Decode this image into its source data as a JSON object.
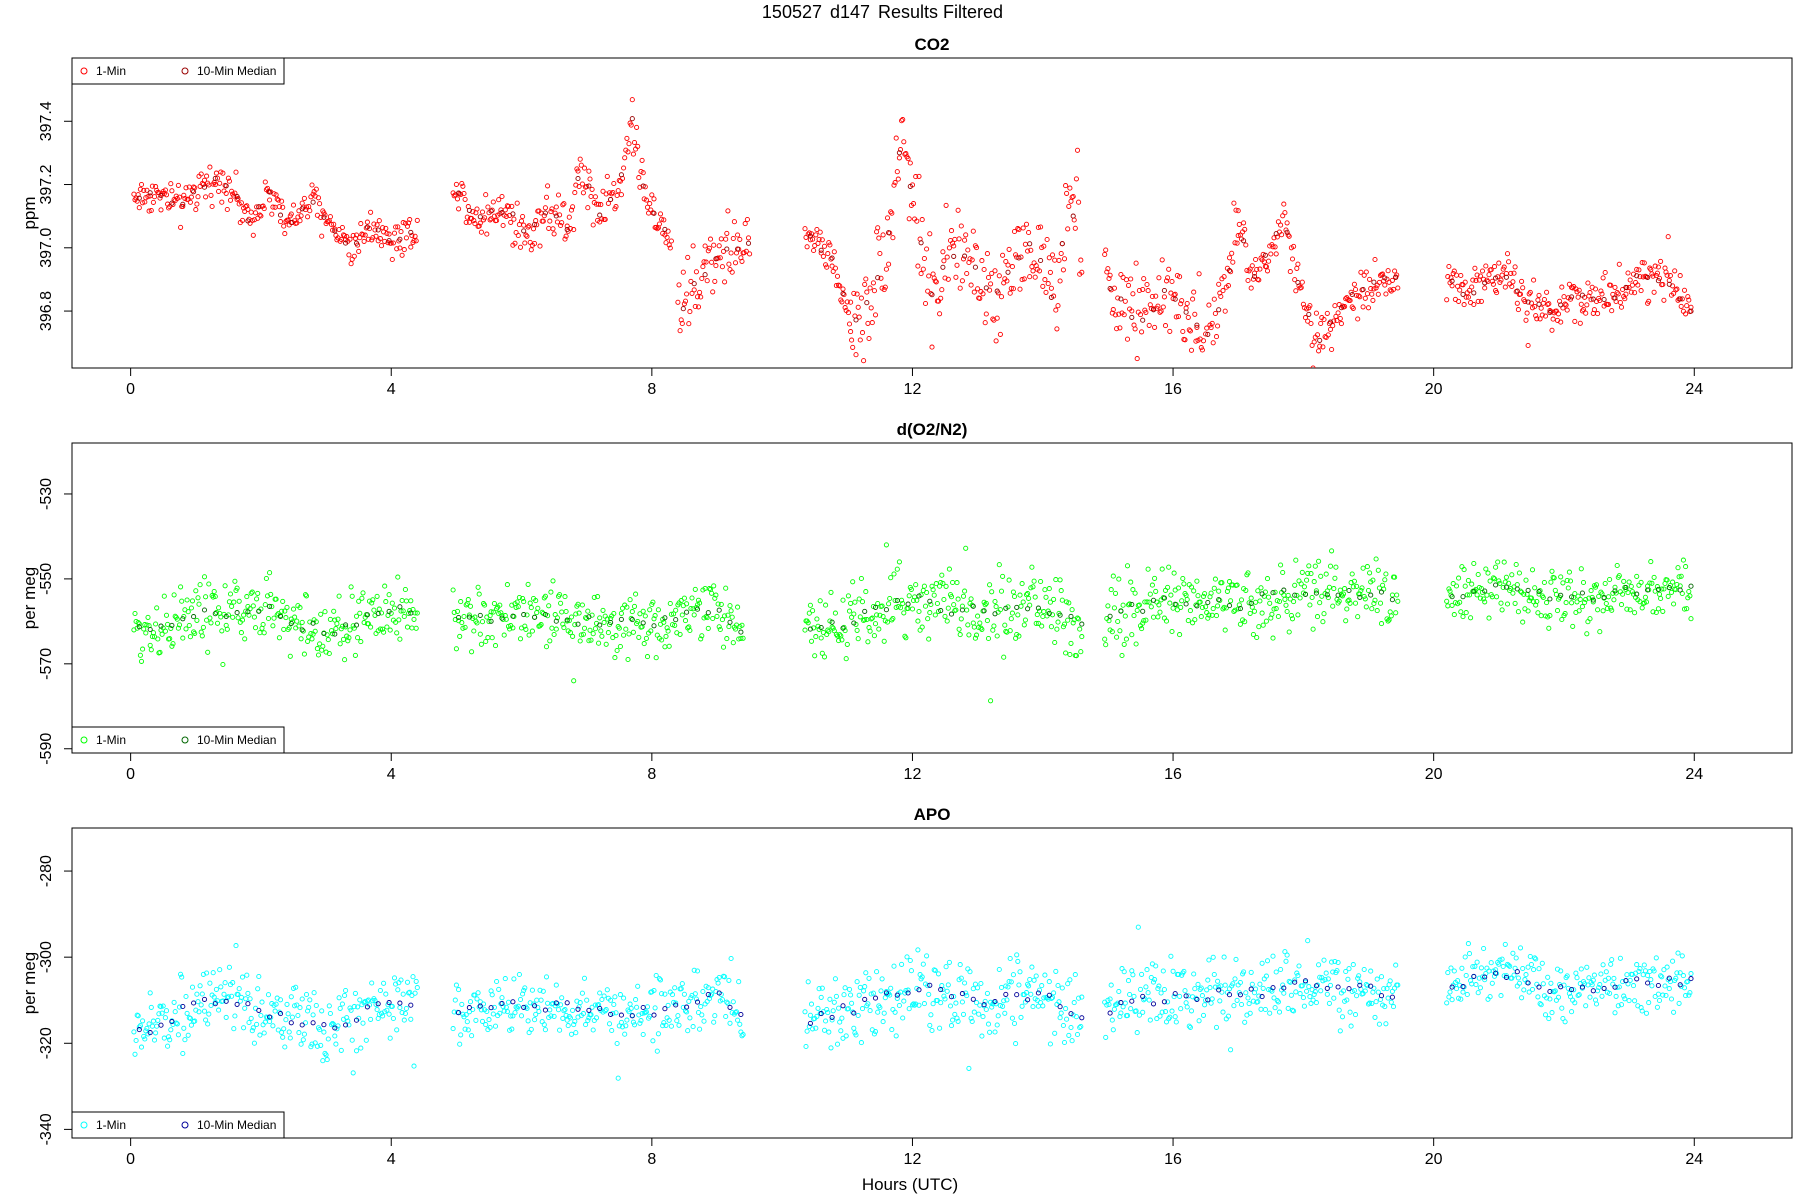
{
  "figure": {
    "title_parts": [
      "150527",
      "d147",
      "Results Filtered"
    ],
    "x_label": "Hours (UTC)"
  },
  "chart_data": [
    {
      "type": "scatter",
      "title": "CO2",
      "xlabel": "Hours (UTC)",
      "ylabel": "ppm",
      "xlim": [
        -0.9,
        25.5
      ],
      "ylim": [
        396.62,
        397.6
      ],
      "x_ticks": [
        0,
        4,
        8,
        12,
        16,
        20,
        24
      ],
      "y_ticks": [
        396.8,
        397.0,
        397.2,
        397.4
      ],
      "y_tick_labels": [
        "396.8",
        "397.0",
        "397.2",
        "397.4"
      ],
      "grid": false,
      "legend_position": "top-left",
      "series": [
        {
          "name": "1-Min",
          "color": "#ff0000",
          "marker": "open-circle"
        },
        {
          "name": "10-Min Median",
          "color": "#990000",
          "marker": "open-circle"
        }
      ],
      "segments": [
        {
          "start": 0.05,
          "end": 4.4,
          "knots": [
            [
              0.05,
              397.16
            ],
            [
              0.4,
              397.17
            ],
            [
              0.8,
              397.13
            ],
            [
              1.0,
              397.18
            ],
            [
              1.4,
              397.22
            ],
            [
              1.6,
              397.17
            ],
            [
              1.8,
              397.08
            ],
            [
              2.1,
              397.18
            ],
            [
              2.4,
              397.07
            ],
            [
              2.8,
              397.15
            ],
            [
              3.1,
              397.07
            ],
            [
              3.4,
              397.0
            ],
            [
              3.7,
              397.08
            ],
            [
              4.0,
              397.02
            ],
            [
              4.4,
              397.06
            ]
          ],
          "noise": 0.04
        },
        {
          "start": 4.95,
          "end": 8.3,
          "knots": [
            [
              4.95,
              397.2
            ],
            [
              5.3,
              397.1
            ],
            [
              5.8,
              397.12
            ],
            [
              6.1,
              397.03
            ],
            [
              6.4,
              397.13
            ],
            [
              6.7,
              397.05
            ],
            [
              6.9,
              397.25
            ],
            [
              7.2,
              397.1
            ],
            [
              7.5,
              397.2
            ],
            [
              7.7,
              397.4
            ],
            [
              7.9,
              397.15
            ],
            [
              8.3,
              397.02
            ]
          ],
          "noise": 0.05
        },
        {
          "start": 8.4,
          "end": 9.5,
          "knots": [
            [
              8.4,
              396.8
            ],
            [
              8.8,
              396.92
            ],
            [
              9.1,
              397.0
            ],
            [
              9.5,
              397.0
            ]
          ],
          "noise": 0.08
        },
        {
          "start": 10.35,
          "end": 11.05,
          "knots": [
            [
              10.35,
              397.05
            ],
            [
              10.6,
              397.0
            ],
            [
              10.8,
              396.95
            ],
            [
              11.05,
              396.77
            ]
          ],
          "noise": 0.04
        },
        {
          "start": 11.05,
          "end": 14.6,
          "knots": [
            [
              11.05,
              396.75
            ],
            [
              11.3,
              396.82
            ],
            [
              11.6,
              397.0
            ],
            [
              11.85,
              397.4
            ],
            [
              12.0,
              397.15
            ],
            [
              12.3,
              396.85
            ],
            [
              12.6,
              397.0
            ],
            [
              12.9,
              396.95
            ],
            [
              13.2,
              396.85
            ],
            [
              13.5,
              396.95
            ],
            [
              13.9,
              397.0
            ],
            [
              14.2,
              396.8
            ],
            [
              14.4,
              397.2
            ],
            [
              14.6,
              396.95
            ]
          ],
          "noise": 0.1
        },
        {
          "start": 14.95,
          "end": 17.0,
          "knots": [
            [
              14.95,
              396.9
            ],
            [
              15.3,
              396.8
            ],
            [
              15.6,
              396.78
            ],
            [
              15.9,
              396.88
            ],
            [
              16.2,
              396.78
            ],
            [
              16.5,
              396.7
            ],
            [
              16.8,
              396.85
            ],
            [
              17.0,
              397.1
            ]
          ],
          "noise": 0.08
        },
        {
          "start": 17.0,
          "end": 19.45,
          "knots": [
            [
              17.0,
              397.1
            ],
            [
              17.2,
              396.9
            ],
            [
              17.5,
              397.0
            ],
            [
              17.7,
              397.1
            ],
            [
              17.9,
              396.9
            ],
            [
              18.2,
              396.7
            ],
            [
              18.5,
              396.8
            ],
            [
              18.8,
              396.85
            ],
            [
              19.1,
              396.9
            ],
            [
              19.45,
              396.9
            ]
          ],
          "noise": 0.05
        },
        {
          "start": 20.2,
          "end": 23.95,
          "knots": [
            [
              20.2,
              396.9
            ],
            [
              20.5,
              396.85
            ],
            [
              20.8,
              396.9
            ],
            [
              21.1,
              396.92
            ],
            [
              21.4,
              396.83
            ],
            [
              21.8,
              396.8
            ],
            [
              22.1,
              396.85
            ],
            [
              22.5,
              396.84
            ],
            [
              22.8,
              396.85
            ],
            [
              23.2,
              396.92
            ],
            [
              23.6,
              396.9
            ],
            [
              23.95,
              396.8
            ]
          ],
          "noise": 0.05
        }
      ]
    },
    {
      "type": "scatter",
      "title": "d(O2/N2)",
      "xlabel": "Hours (UTC)",
      "ylabel": "per meg",
      "xlim": [
        -0.9,
        25.5
      ],
      "ylim": [
        -591,
        -518
      ],
      "x_ticks": [
        0,
        4,
        8,
        12,
        16,
        20,
        24
      ],
      "y_ticks": [
        -590,
        -570,
        -550,
        -530
      ],
      "y_tick_labels": [
        "-590",
        "-570",
        "-550",
        "-530"
      ],
      "grid": false,
      "legend_position": "bottom-left",
      "series": [
        {
          "name": "1-Min",
          "color": "#00ff00",
          "marker": "open-circle"
        },
        {
          "name": "10-Min Median",
          "color": "#006600",
          "marker": "open-circle"
        }
      ],
      "segments": [
        {
          "start": 0.05,
          "end": 4.4,
          "knots": [
            [
              0.05,
              -563
            ],
            [
              1.0,
              -558
            ],
            [
              2.0,
              -557
            ],
            [
              3.0,
              -563
            ],
            [
              4.0,
              -557
            ],
            [
              4.4,
              -558
            ]
          ],
          "noise": 5.5
        },
        {
          "start": 4.95,
          "end": 9.4,
          "knots": [
            [
              4.95,
              -560
            ],
            [
              6.0,
              -558
            ],
            [
              7.0,
              -560
            ],
            [
              8.0,
              -561
            ],
            [
              9.0,
              -557
            ],
            [
              9.4,
              -562
            ]
          ],
          "noise": 5
        },
        {
          "start": 10.35,
          "end": 14.6,
          "knots": [
            [
              10.35,
              -562
            ],
            [
              11.0,
              -560
            ],
            [
              12.0,
              -555
            ],
            [
              13.0,
              -558
            ],
            [
              14.0,
              -556
            ],
            [
              14.6,
              -562
            ]
          ],
          "noise": 6
        },
        {
          "start": 14.95,
          "end": 19.45,
          "knots": [
            [
              14.95,
              -558
            ],
            [
              16.0,
              -555
            ],
            [
              17.0,
              -556
            ],
            [
              18.0,
              -553
            ],
            [
              19.0,
              -554
            ],
            [
              19.45,
              -555
            ]
          ],
          "noise": 5.5
        },
        {
          "start": 20.2,
          "end": 23.95,
          "knots": [
            [
              20.2,
              -555
            ],
            [
              21.0,
              -552
            ],
            [
              22.0,
              -555
            ],
            [
              23.0,
              -553
            ],
            [
              23.95,
              -552
            ]
          ],
          "noise": 4.5
        }
      ]
    },
    {
      "type": "scatter",
      "title": "APO",
      "xlabel": "Hours (UTC)",
      "ylabel": "per meg",
      "xlim": [
        -0.9,
        25.5
      ],
      "ylim": [
        -342,
        -270
      ],
      "x_ticks": [
        0,
        4,
        8,
        12,
        16,
        20,
        24
      ],
      "y_ticks": [
        -340,
        -320,
        -300,
        -280
      ],
      "y_tick_labels": [
        "-340",
        "-320",
        "-300",
        "-280"
      ],
      "grid": false,
      "legend_position": "bottom-left",
      "series": [
        {
          "name": "1-Min",
          "color": "#00ffff",
          "marker": "open-circle"
        },
        {
          "name": "10-Min Median",
          "color": "#000099",
          "marker": "open-circle"
        }
      ],
      "segments": [
        {
          "start": 0.05,
          "end": 4.4,
          "knots": [
            [
              0.05,
              -318
            ],
            [
              1.0,
              -311
            ],
            [
              2.0,
              -312
            ],
            [
              3.0,
              -317
            ],
            [
              4.0,
              -310
            ],
            [
              4.4,
              -311
            ]
          ],
          "noise": 5.5
        },
        {
          "start": 4.95,
          "end": 9.4,
          "knots": [
            [
              4.95,
              -313
            ],
            [
              6.0,
              -311
            ],
            [
              7.0,
              -312
            ],
            [
              8.0,
              -313
            ],
            [
              9.0,
              -309
            ],
            [
              9.4,
              -315
            ]
          ],
          "noise": 5
        },
        {
          "start": 10.35,
          "end": 14.6,
          "knots": [
            [
              10.35,
              -315
            ],
            [
              11.0,
              -312
            ],
            [
              12.0,
              -307
            ],
            [
              13.0,
              -310
            ],
            [
              14.0,
              -308
            ],
            [
              14.6,
              -315
            ]
          ],
          "noise": 6
        },
        {
          "start": 14.95,
          "end": 19.45,
          "knots": [
            [
              14.95,
              -312
            ],
            [
              16.0,
              -309
            ],
            [
              17.0,
              -309
            ],
            [
              18.0,
              -306
            ],
            [
              19.0,
              -308
            ],
            [
              19.45,
              -309
            ]
          ],
          "noise": 5.5
        },
        {
          "start": 20.2,
          "end": 23.95,
          "knots": [
            [
              20.2,
              -307
            ],
            [
              21.0,
              -303
            ],
            [
              22.0,
              -308
            ],
            [
              23.0,
              -306
            ],
            [
              23.95,
              -306
            ]
          ],
          "noise": 4.5
        }
      ]
    }
  ]
}
